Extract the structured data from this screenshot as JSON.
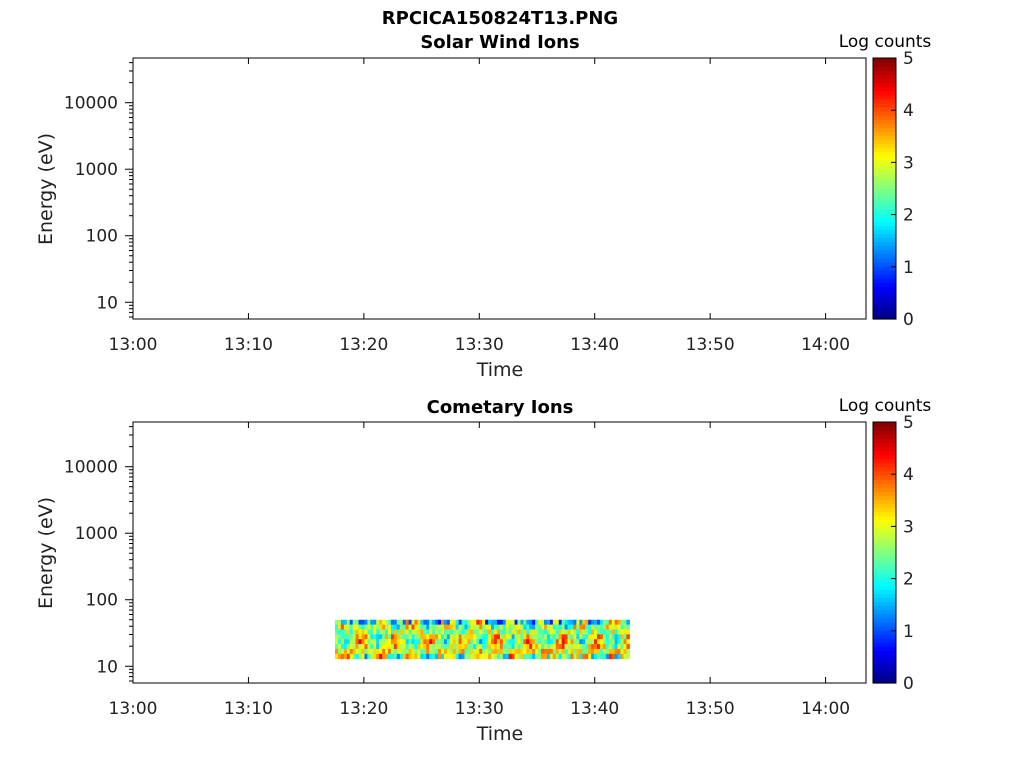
{
  "figure_title": "RPCICA150824T13.PNG",
  "chart_data": [
    {
      "type": "heatmap",
      "title": "Solar Wind Ions",
      "xlabel": "Time",
      "ylabel": "Energy (eV)",
      "x_ticks": [
        "13:00",
        "13:10",
        "13:20",
        "13:30",
        "13:40",
        "13:50",
        "14:00"
      ],
      "y_ticks": [
        "10",
        "100",
        "1000",
        "10000"
      ],
      "y_scale": "log",
      "colorbar": {
        "title": "Log counts",
        "ticks": [
          "0",
          "1",
          "2",
          "3",
          "4",
          "5"
        ],
        "colormap": "jet"
      },
      "data": null
    },
    {
      "type": "heatmap",
      "title": "Cometary Ions",
      "xlabel": "Time",
      "ylabel": "Energy (eV)",
      "x_ticks": [
        "13:00",
        "13:10",
        "13:20",
        "13:30",
        "13:40",
        "13:50",
        "14:00"
      ],
      "y_ticks": [
        "10",
        "100",
        "1000",
        "10000"
      ],
      "y_scale": "log",
      "colorbar": {
        "title": "Log counts",
        "ticks": [
          "0",
          "1",
          "2",
          "3",
          "4",
          "5"
        ],
        "colormap": "jet"
      },
      "data": {
        "time_range": [
          "13:17:30",
          "13:43:00"
        ],
        "energy_range_eV": [
          13,
          50
        ],
        "value_range": [
          0.5,
          4.5
        ]
      }
    }
  ]
}
